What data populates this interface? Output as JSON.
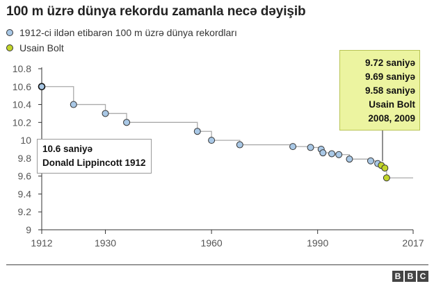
{
  "title": "100 m üzrə dünya rekordu zamanla necə dəyişib",
  "legend": [
    {
      "label": "1912-ci ildən etibarən 100 m üzrə dünya rekordları",
      "color": "#a9c8e6"
    },
    {
      "label": "Usain Bolt",
      "color": "#c2d52b"
    }
  ],
  "callouts": {
    "lippincott": {
      "line1": "10.6 saniyə",
      "line2": "Donald Lippincott 1912"
    },
    "bolt": {
      "line1": "9.72 saniyə",
      "line2": "9.69 saniyə",
      "line3": "9.58 saniyə",
      "line4": "Usain Bolt",
      "line5": "2008, 2009"
    }
  },
  "branding": {
    "b1": "B",
    "b2": "B",
    "b3": "C"
  },
  "chart_data": {
    "type": "scatter",
    "title": "100 m üzrə dünya rekordu zamanla necə dəyişib",
    "xlim": [
      1912,
      2017
    ],
    "ylim": [
      9,
      10.8
    ],
    "x_ticks": [
      1912,
      1930,
      1960,
      1990,
      2017
    ],
    "y_ticks": [
      10.8,
      10.6,
      10.4,
      10.2,
      10,
      9.8,
      9.6,
      9.4,
      9.2,
      9
    ],
    "grid": false,
    "series": [
      {
        "name": "1912-ci ildən etibarən 100 m üzrə dünya rekordları",
        "color": "#a9c8e6",
        "points": [
          {
            "x": 1912,
            "y": 10.6
          },
          {
            "x": 1921,
            "y": 10.4
          },
          {
            "x": 1930,
            "y": 10.3
          },
          {
            "x": 1936,
            "y": 10.2
          },
          {
            "x": 1956,
            "y": 10.1
          },
          {
            "x": 1960,
            "y": 10.0
          },
          {
            "x": 1968,
            "y": 9.95
          },
          {
            "x": 1983,
            "y": 9.93
          },
          {
            "x": 1988,
            "y": 9.92
          },
          {
            "x": 1991,
            "y": 9.9
          },
          {
            "x": 1991.5,
            "y": 9.86
          },
          {
            "x": 1994,
            "y": 9.85
          },
          {
            "x": 1996,
            "y": 9.84
          },
          {
            "x": 1999,
            "y": 9.79
          },
          {
            "x": 2005,
            "y": 9.77
          },
          {
            "x": 2007,
            "y": 9.74
          }
        ]
      },
      {
        "name": "Usain Bolt",
        "color": "#c2d52b",
        "points": [
          {
            "x": 2008,
            "y": 9.72
          },
          {
            "x": 2009,
            "y": 9.69
          },
          {
            "x": 2009.5,
            "y": 9.58
          }
        ]
      }
    ]
  }
}
